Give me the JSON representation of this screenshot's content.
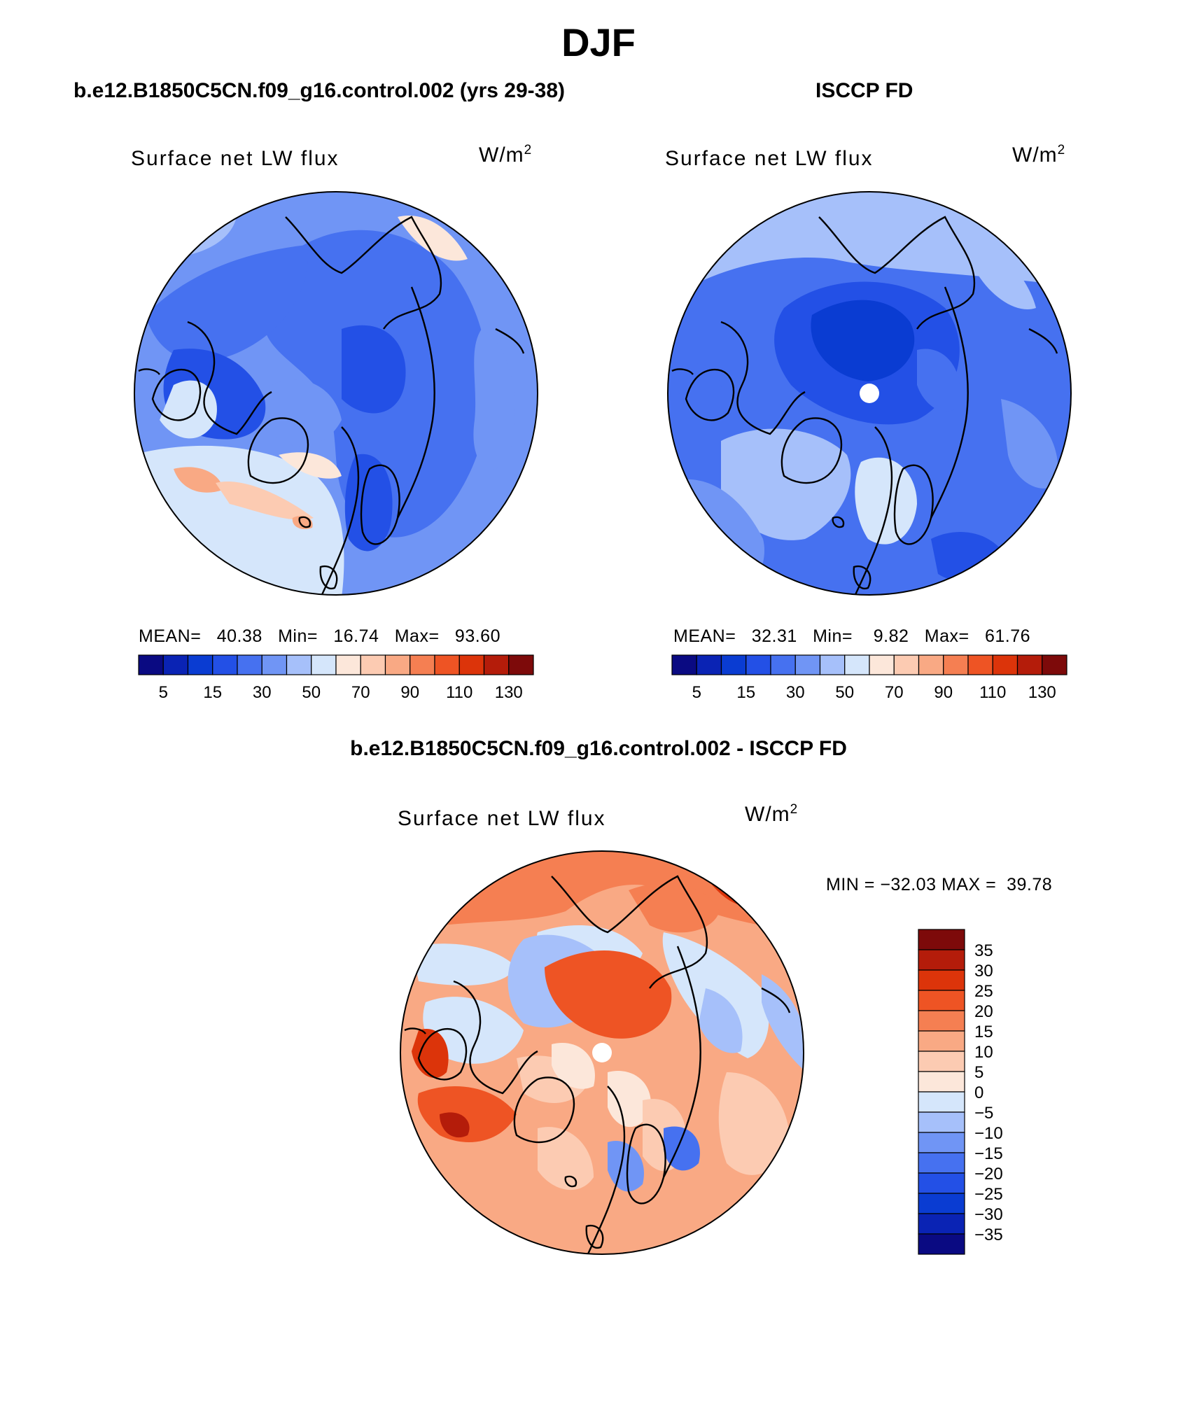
{
  "page": {
    "season_title": "DJF"
  },
  "panels": {
    "model": {
      "header": "b.e12.B1850C5CN.f09_g16.control.002 (yrs 29-38)",
      "plot_title": "Surface net LW flux",
      "units": "W/m",
      "units_exp": "2",
      "stats": {
        "mean_label": "MEAN=",
        "mean": "40.38",
        "min_label": "Min=",
        "min": "16.74",
        "max_label": "Max=",
        "max": "93.60"
      }
    },
    "obs": {
      "header": "ISCCP FD",
      "plot_title": "Surface net LW flux",
      "units": "W/m",
      "units_exp": "2",
      "stats": {
        "mean_label": "MEAN=",
        "mean": "32.31",
        "min_label": "Min=",
        "min": "9.82",
        "max_label": "Max=",
        "max": "61.76"
      }
    },
    "diff": {
      "header": "b.e12.B1850C5CN.f09_g16.control.002 - ISCCP FD",
      "plot_title": "Surface net LW flux",
      "units": "W/m",
      "units_exp": "2",
      "stats": {
        "min_label": "MIN =",
        "min": "−32.03",
        "max_label": "MAX =",
        "max": "39.78"
      }
    }
  },
  "colorbars": {
    "absolute": {
      "colors": [
        "#0a0a82",
        "#0a23b4",
        "#0a3cd2",
        "#2350e6",
        "#4671f0",
        "#7095f5",
        "#a6c0fa",
        "#d5e6fb",
        "#fce7da",
        "#fccbb2",
        "#f9a984",
        "#f57f52",
        "#ee5424",
        "#dc340a",
        "#b41c0a",
        "#7d0a0a"
      ],
      "tick_labels": [
        "5",
        "15",
        "30",
        "50",
        "70",
        "90",
        "110",
        "130"
      ]
    },
    "difference": {
      "colors": [
        "#0a0a82",
        "#0a23b4",
        "#0a3cd2",
        "#2350e6",
        "#4671f0",
        "#7095f5",
        "#a6c0fa",
        "#d5e6fb",
        "#fce7da",
        "#fccbb2",
        "#f9a984",
        "#f57f52",
        "#ee5424",
        "#dc340a",
        "#b41c0a",
        "#7d0a0a"
      ],
      "tick_labels": [
        "35",
        "30",
        "25",
        "20",
        "15",
        "10",
        "5",
        "0",
        "−5",
        "−10",
        "−15",
        "−20",
        "−25",
        "−30",
        "−35"
      ]
    }
  },
  "fields": {
    "model_base": "#7095f5",
    "obs_base": "#4671f0",
    "diff_base": "#f9a984",
    "pole_hole": "#ffffff",
    "coast": "#000000"
  }
}
